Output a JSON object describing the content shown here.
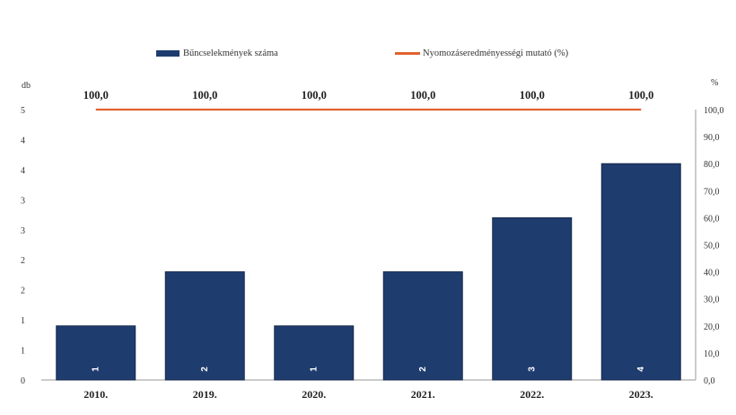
{
  "chart_data": {
    "type": "bar",
    "categories": [
      "2010.",
      "2019.",
      "2020.",
      "2021.",
      "2022.",
      "2023."
    ],
    "series": [
      {
        "name": "Bűncselekmények száma",
        "type": "bar",
        "axis": "left",
        "values": [
          1,
          2,
          1,
          2,
          3,
          4
        ],
        "color": "#1f3c6e"
      },
      {
        "name": "Nyomozáseredményességi mutató (%)",
        "type": "line",
        "axis": "right",
        "values": [
          100.0,
          100.0,
          100.0,
          100.0,
          100.0,
          100.0
        ],
        "color": "#e2622e"
      }
    ],
    "bar_labels": [
      "1",
      "2",
      "1",
      "2",
      "3",
      "4"
    ],
    "line_labels": [
      "100,0",
      "100,0",
      "100,0",
      "100,0",
      "100,0",
      "100,0"
    ],
    "left_axis": {
      "unit": "db",
      "ylim": [
        0,
        5
      ],
      "tick_labels": [
        "0",
        "1",
        "1",
        "2",
        "2",
        "3",
        "3",
        "4",
        "4",
        "5"
      ]
    },
    "right_axis": {
      "unit": "%",
      "ylim": [
        0,
        100
      ],
      "tick_labels": [
        "0,0",
        "10,0",
        "20,0",
        "30,0",
        "40,0",
        "50,0",
        "60,0",
        "70,0",
        "80,0",
        "90,0",
        "100,0"
      ]
    },
    "grid": false,
    "legend_position": "top-center"
  }
}
